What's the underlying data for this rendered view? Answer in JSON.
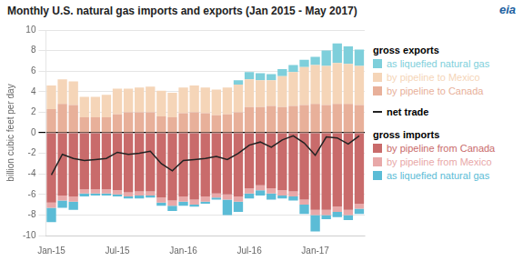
{
  "chart_data": {
    "type": "bar",
    "stacked": true,
    "title": "Monthly U.S. natural gas imports and exports (Jan 2015 - May 2017)",
    "ylabel": "billion cubic feet per day",
    "annotations": [
      "gross exports",
      "gross imports",
      "eia"
    ],
    "categories": [
      "Jan-15",
      null,
      null,
      null,
      null,
      null,
      "Jul-15",
      null,
      null,
      null,
      null,
      null,
      "Jan-16",
      null,
      null,
      null,
      null,
      null,
      "Jul-16",
      null,
      null,
      null,
      null,
      null,
      "Jan-17",
      null,
      null,
      null,
      null
    ],
    "series": [
      {
        "name": "by pipeline to Canada",
        "type": "bar",
        "color": "#e8b09a",
        "values": [
          2.3,
          2.8,
          2.7,
          1.5,
          1.5,
          1.5,
          1.8,
          2.0,
          2.0,
          2.0,
          1.6,
          1.5,
          1.9,
          2.0,
          1.9,
          1.7,
          1.8,
          2.0,
          2.5,
          2.5,
          2.6,
          2.5,
          2.6,
          2.7,
          2.8,
          2.7,
          2.8,
          2.8,
          2.7
        ]
      },
      {
        "name": "by pipeline to Mexico",
        "type": "bar",
        "color": "#f5d5b8",
        "values": [
          2.3,
          2.4,
          2.3,
          2.0,
          2.0,
          2.2,
          2.5,
          2.3,
          2.4,
          2.5,
          2.5,
          2.4,
          2.5,
          2.6,
          2.5,
          2.5,
          2.6,
          2.7,
          2.7,
          2.6,
          2.5,
          3.0,
          3.3,
          3.7,
          3.8,
          3.8,
          4.0,
          3.9,
          3.8
        ]
      },
      {
        "name": "as liquefied natural gas",
        "type": "bar",
        "color": "#7ecfdb",
        "values": [
          0.0,
          0.0,
          0.0,
          0.0,
          0.0,
          0.0,
          0.0,
          0.0,
          0.0,
          0.0,
          0.0,
          0.0,
          0.0,
          0.0,
          0.0,
          0.0,
          0.0,
          0.4,
          0.7,
          0.7,
          0.6,
          0.7,
          0.7,
          0.7,
          0.8,
          1.5,
          1.9,
          1.7,
          1.6
        ]
      },
      {
        "name": "by pipeline from Canada",
        "type": "bar",
        "color": "#c96b6b",
        "values": [
          -6.8,
          -6.1,
          -6.2,
          -5.5,
          -5.5,
          -5.5,
          -5.6,
          -5.8,
          -5.7,
          -5.7,
          -6.3,
          -6.6,
          -6.2,
          -6.5,
          -6.2,
          -5.9,
          -6.0,
          -6.2,
          -5.4,
          -5.1,
          -5.4,
          -5.6,
          -5.7,
          -6.5,
          -7.5,
          -7.5,
          -7.2,
          -7.5,
          -6.9
        ]
      },
      {
        "name": "by pipeline from Mexico",
        "type": "bar",
        "color": "#e8a8a8",
        "values": [
          -0.5,
          -0.5,
          -0.5,
          -0.4,
          -0.4,
          -0.4,
          -0.4,
          -0.4,
          -0.4,
          -0.4,
          -0.5,
          -0.5,
          -0.5,
          -0.5,
          -0.5,
          -0.4,
          -0.5,
          -0.5,
          -0.5,
          -0.5,
          -0.5,
          -0.5,
          -0.5,
          -0.5,
          -0.5,
          -0.5,
          -0.5,
          -0.5,
          -0.5
        ]
      },
      {
        "name": "as liquefied natural gas",
        "type": "bar",
        "color": "#5bbcd6",
        "values": [
          -1.4,
          -0.7,
          -0.8,
          -0.3,
          -0.2,
          -0.2,
          -0.2,
          -0.2,
          -0.3,
          -0.2,
          -0.3,
          -0.5,
          -0.4,
          -0.2,
          -0.2,
          -0.2,
          -1.5,
          -1.0,
          -0.5,
          -0.5,
          -0.6,
          -0.3,
          -0.4,
          -0.9,
          -1.6,
          -0.4,
          -0.5,
          -0.5,
          -0.5
        ]
      },
      {
        "name": "net trade",
        "type": "line",
        "color": "#222222",
        "values": [
          -4.1,
          -2.1,
          -2.5,
          -2.7,
          -2.6,
          -2.5,
          -1.9,
          -2.1,
          -2.0,
          -1.8,
          -3.0,
          -3.7,
          -2.7,
          -2.6,
          -2.5,
          -2.3,
          -2.6,
          -2.0,
          -1.2,
          -0.9,
          -1.4,
          -0.7,
          -0.3,
          -1.0,
          -2.2,
          -0.4,
          -0.5,
          -1.1,
          -0.3
        ]
      }
    ],
    "ylim": [
      -10,
      10
    ],
    "yticks": [
      -10,
      -8,
      -6,
      -4,
      -2,
      0,
      2,
      4,
      6,
      8,
      10
    ],
    "grid": true,
    "legend": "right"
  }
}
